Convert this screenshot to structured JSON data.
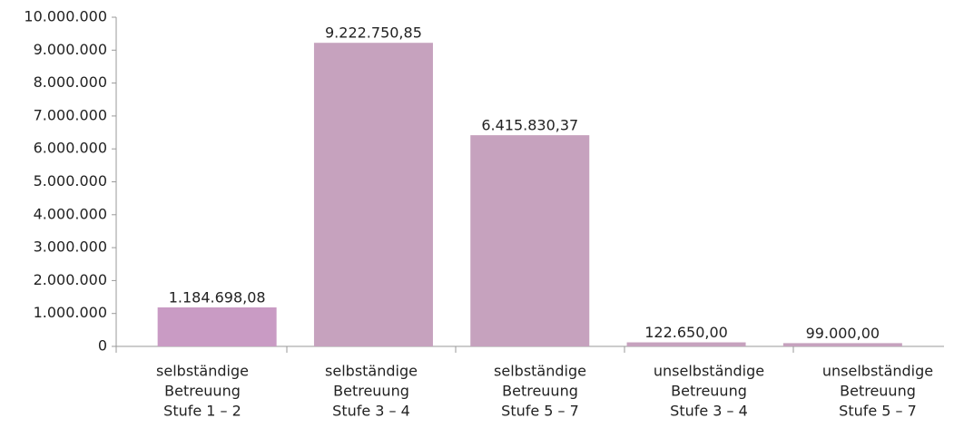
{
  "chart_data": {
    "type": "bar",
    "categories": [
      [
        "selbständige",
        "Betreuung",
        "Stufe 1 – 2"
      ],
      [
        "selbständige",
        "Betreuung",
        "Stufe 3 – 4"
      ],
      [
        "selbständige",
        "Betreuung",
        "Stufe 5 – 7"
      ],
      [
        "unselbständige",
        "Betreuung",
        "Stufe 3 – 4"
      ],
      [
        "unselbständige",
        "Betreuung",
        "Stufe 5 – 7"
      ]
    ],
    "values": [
      1184698.08,
      9222750.85,
      6415830.37,
      122650,
      99000
    ],
    "value_labels": [
      "1.184.698,08",
      "9.222.750,85",
      "6.415.830,37",
      "122.650,00",
      "99.000,00"
    ],
    "colors": [
      "#c99bc4",
      "#c6a2be",
      "#c6a2be",
      "#c6a2be",
      "#c6a2be"
    ],
    "ylim": [
      0,
      10000000
    ],
    "yticks": [
      0,
      {
        "value": 1000000,
        "label": "1.000.000"
      },
      {
        "value": 2000000,
        "label": "2.000.000"
      },
      {
        "value": 3000000,
        "label": "3.000.000"
      },
      {
        "value": 4000000,
        "label": "4.000.000"
      },
      {
        "value": 5000000,
        "label": "5.000.000"
      },
      {
        "value": 6000000,
        "label": "6.000.000"
      },
      {
        "value": 7000000,
        "label": "7.000.000"
      },
      {
        "value": 8000000,
        "label": "8.000.000"
      },
      {
        "value": 9000000,
        "label": "9.000.000"
      },
      {
        "value": 10000000,
        "label": "10.000.000"
      }
    ],
    "grid": false
  }
}
